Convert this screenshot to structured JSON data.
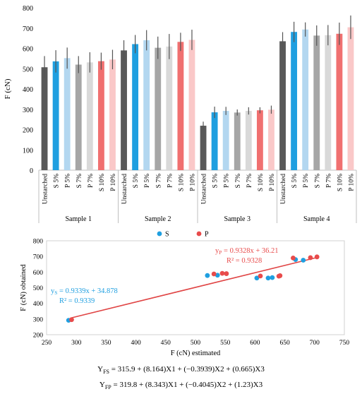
{
  "chart_data": [
    {
      "type": "bar",
      "ylabel": "F (cN)",
      "ylim": [
        0,
        800
      ],
      "yticks": [
        0,
        100,
        200,
        300,
        400,
        500,
        600,
        700,
        800
      ],
      "grid": false,
      "groups": [
        "Sample 1",
        "Sample 2",
        "Sample 3",
        "Sample 4"
      ],
      "categories": [
        "Unstarched",
        "S 5%",
        "P 5%",
        "S 7%",
        "P 7%",
        "S 10%",
        "P 10%"
      ],
      "colors": [
        "#595959",
        "#1f9fe0",
        "#b3d7f0",
        "#a6a6a6",
        "#d9d9d9",
        "#f07070",
        "#fac8c8"
      ],
      "values": [
        [
          507,
          536,
          552,
          520,
          531,
          537,
          545
        ],
        [
          590,
          621,
          640,
          603,
          609,
          632,
          642
        ],
        [
          219,
          285,
          292,
          284,
          292,
          295,
          298
        ],
        [
          635,
          681,
          693,
          663,
          665,
          672,
          704
        ]
      ],
      "errors": [
        [
          55,
          55,
          52,
          42,
          50,
          42,
          48
        ],
        [
          50,
          45,
          50,
          55,
          62,
          45,
          50
        ],
        [
          20,
          28,
          20,
          15,
          18,
          15,
          20
        ],
        [
          45,
          50,
          35,
          50,
          50,
          55,
          58
        ]
      ]
    },
    {
      "type": "scatter",
      "xlabel": "F (cN) estimated",
      "ylabel": "F (cN) obtained",
      "xlim": [
        250,
        750
      ],
      "ylim": [
        200,
        800
      ],
      "xticks": [
        250,
        300,
        350,
        400,
        450,
        500,
        550,
        600,
        650,
        700,
        750
      ],
      "yticks": [
        200,
        300,
        400,
        500,
        600,
        700,
        800
      ],
      "legend": "top-center",
      "series": [
        {
          "name": "S",
          "color": "#1f9fe0",
          "points": [
            [
              287,
              292
            ],
            [
              520,
              578
            ],
            [
              537,
              580
            ],
            [
              603,
              562
            ],
            [
              622,
              562
            ],
            [
              629,
              565
            ],
            [
              668,
              680
            ],
            [
              681,
              676
            ]
          ],
          "equation": "= 0.9339x + 34.878",
          "r2": "R² = 0.9339",
          "eq_prefix": "y",
          "eq_sub": "S"
        },
        {
          "name": "P",
          "color": "#e84b4b",
          "points": [
            [
              292,
              296
            ],
            [
              531,
              588
            ],
            [
              545,
              592
            ],
            [
              552,
              590
            ],
            [
              609,
              575
            ],
            [
              640,
              574
            ],
            [
              642,
              577
            ],
            [
              664,
              690
            ],
            [
              693,
              692
            ],
            [
              704,
              697
            ]
          ],
          "equation": "= 0.9328x + 36.21",
          "r2": "R² = 0.9328",
          "eq_prefix": "y",
          "eq_sub": "P"
        }
      ],
      "trendline": {
        "color": "#e04545",
        "from": [
          290,
          306
        ],
        "to": [
          706,
          695
        ]
      }
    }
  ],
  "formulas": [
    {
      "lhs": "Y",
      "sub": "FS",
      "rhs": " = 315.9 + (8.164)X1 + (−0.3939)X2 + (0.665)X3"
    },
    {
      "lhs": "Y",
      "sub": "FP",
      "rhs": " = 319.8 + (8.343)X1 + (−0.4045)X2 + (1.23)X3"
    }
  ]
}
